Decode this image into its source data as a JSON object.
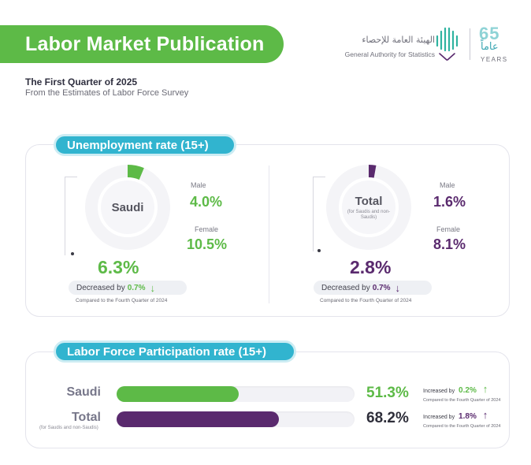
{
  "header": {
    "title": "Labor Market Publication",
    "subtitle_1": "The First Quarter of 2025",
    "subtitle_2": "From the Estimates of Labor Force Survey"
  },
  "logo": {
    "arabic_name": "الهيئة العامة للإحصاء",
    "english_name": "General Authority for Statistics",
    "anniversary_number": "65",
    "anniversary_arabic": "عاماً",
    "anniversary_label": "YEARS"
  },
  "unemployment": {
    "heading": "Unemployment rate (15+)",
    "saudi": {
      "name": "Saudi",
      "rate": "6.3%",
      "rate_value": 6.3,
      "male_label": "Male",
      "male_rate": "4.0%",
      "female_label": "Female",
      "female_rate": "10.5%",
      "change_text": "Decreased by",
      "change_value": "0.7%",
      "compare_text": "Compared to the Fourth Quarter of 2024"
    },
    "total": {
      "name": "Total",
      "note": "(for Saudis and non-Saudis)",
      "rate": "2.8%",
      "rate_value": 2.8,
      "male_label": "Male",
      "male_rate": "1.6%",
      "female_label": "Female",
      "female_rate": "8.1%",
      "change_text": "Decreased by",
      "change_value": "0.7%",
      "compare_text": "Compared to the Fourth Quarter of 2024"
    }
  },
  "participation": {
    "heading": "Labor Force Participation rate (15+)",
    "rows": [
      {
        "label": "Saudi",
        "note": "",
        "rate": "51.3%",
        "value": 51.3,
        "change_text": "Increased by",
        "change_value": "0.2%",
        "compare_text": "Compared to the Fourth Quarter of 2024"
      },
      {
        "label": "Total",
        "note": "(for Saudis and non-Saudis)",
        "rate": "68.2%",
        "value": 68.2,
        "change_text": "Increased by",
        "change_value": "1.8%",
        "compare_text": "Compared to the Fourth Quarter of 2024"
      }
    ]
  },
  "colors": {
    "green": "#5dba47",
    "purple": "#5a2a6e",
    "teal": "#31b4cf"
  },
  "icons": {
    "down_arrow": "arrow-down-icon",
    "up_arrow": "arrow-up-icon"
  }
}
